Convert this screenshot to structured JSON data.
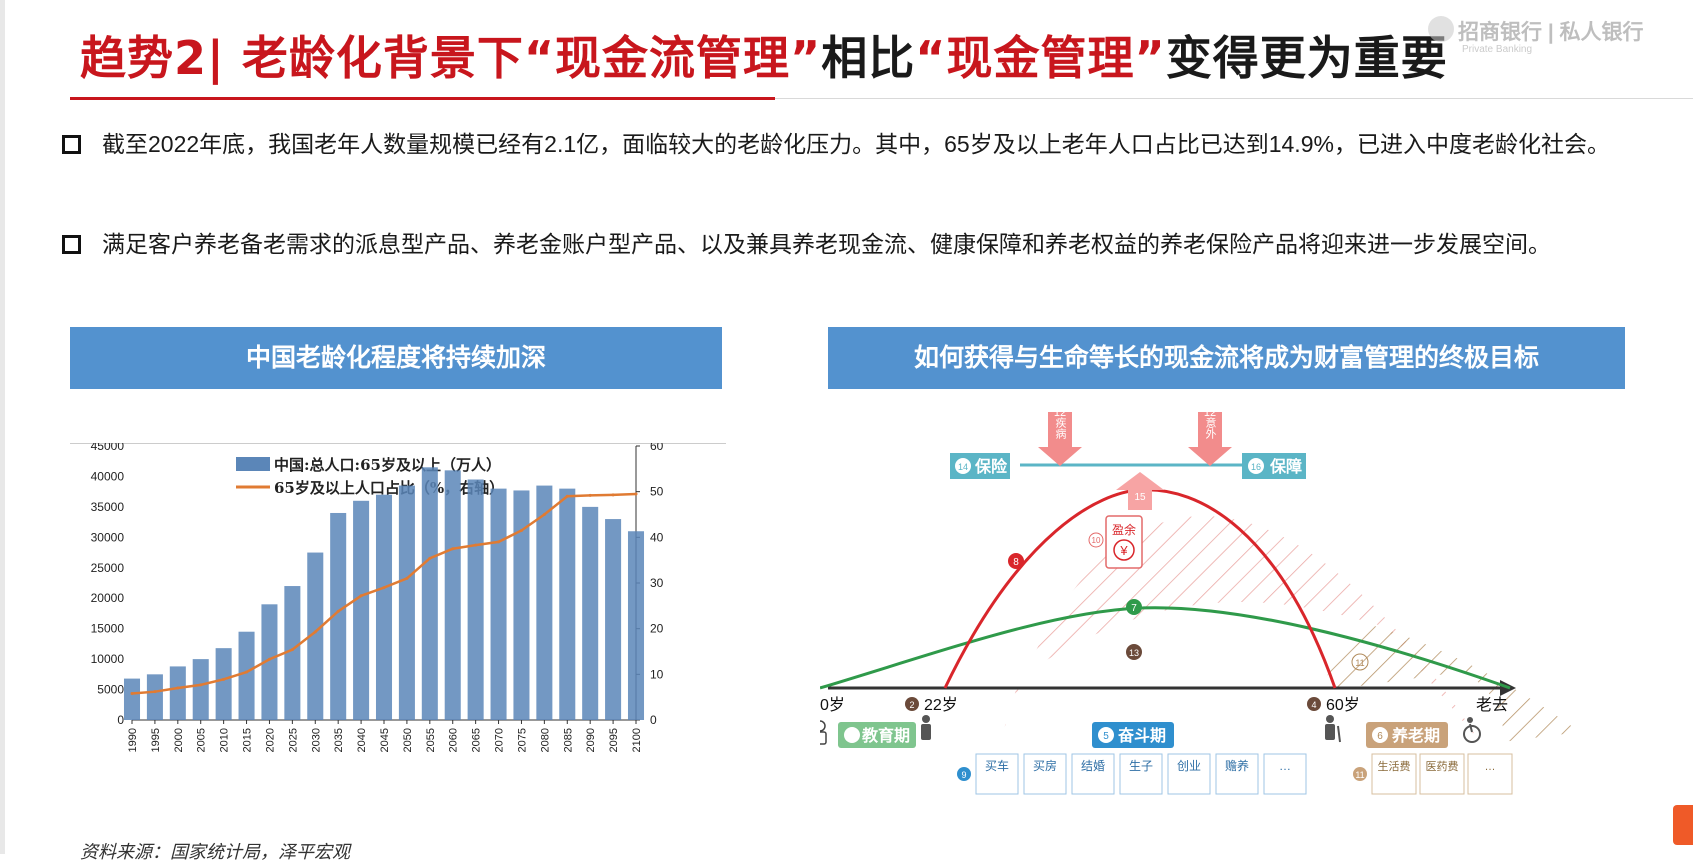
{
  "header": {
    "title_part1": "趋势2| 老龄化背景下",
    "title_quote1": "“现金流管理”",
    "title_part2": "相比",
    "title_quote2": "“现金管理”",
    "title_part3": "变得更为重要",
    "logo_cn": "招商银行 | 私人银行",
    "logo_en": "Private Banking"
  },
  "bullets": [
    "截至2022年底，我国老年人数量规模已经有2.1亿，面临较大的老龄化压力。其中，65岁及以上老年人口占比已达到14.9%，已进入中度老龄化社会。",
    "满足客户养老备老需求的派息型产品、养老金账户型产品、以及兼具养老现金流、健康保障和养老权益的养老保险产品将迎来进一步发展空间。"
  ],
  "left_panel": {
    "header": "中国老龄化程度将持续加深",
    "source": "资料来源：国家统计局，泽平宏观"
  },
  "right_panel": {
    "header": "如何获得与生命等长的现金流将成为财富管理的终极目标",
    "nodes": {
      "n1": "1",
      "n2": "2",
      "n4": "4",
      "n5": "5",
      "n6": "6",
      "n7": "7",
      "n8": "8",
      "n9": "9",
      "n10": "10",
      "n11": "11",
      "n11b": "11",
      "n12a": "12",
      "n12b": "12",
      "n13": "13",
      "n14": "14",
      "n15": "15",
      "n16": "16"
    },
    "age_0": "0岁",
    "age_22": "22岁",
    "age_60": "60岁",
    "age_old": "老去",
    "phase_edu": "教育期",
    "phase_work": "奋斗期",
    "phase_retire": "养老期",
    "protect_left": "保险",
    "protect_right": "保障",
    "risk_disease": "疾病",
    "risk_accident": "意外",
    "surplus": "盈余",
    "yen": "¥",
    "expenses_work": [
      "买车",
      "买房",
      "结婚",
      "生子",
      "创业",
      "赡养",
      "…"
    ],
    "expenses_retire": [
      "生活费",
      "医药费",
      "…"
    ],
    "colors": {
      "red_curve": "#d9262b",
      "green_curve": "#2f9a4a",
      "protect": "#5bb5c6",
      "retire": "#b08a5a",
      "work": "#2f8fce"
    }
  },
  "chart_data": {
    "type": "bar+line",
    "legend": [
      "中国:总人口:65岁及以上（万人）",
      "65岁及以上人口占比（%，右轴）"
    ],
    "x_ticks": [
      "1990",
      "1995",
      "2000",
      "2005",
      "2010",
      "2015",
      "2020",
      "2025",
      "2030",
      "2035",
      "2040",
      "2045",
      "2050",
      "2055",
      "2060",
      "2065",
      "2070",
      "2075",
      "2080",
      "2085",
      "2090",
      "2095",
      "2100"
    ],
    "y_left_ticks": [
      "0",
      "5000",
      "10000",
      "15000",
      "20000",
      "25000",
      "30000",
      "35000",
      "40000",
      "45000"
    ],
    "y_right_ticks": [
      "0",
      "10",
      "20",
      "30",
      "40",
      "50",
      "60"
    ],
    "ylim_left": [
      0,
      45000
    ],
    "ylim_right": [
      0,
      60
    ],
    "xlim": [
      1990,
      2100
    ],
    "series": [
      {
        "name": "中国:总人口:65岁及以上（万人）",
        "type": "bar",
        "x": [
          1990,
          1995,
          2000,
          2005,
          2010,
          2015,
          2020,
          2025,
          2030,
          2035,
          2040,
          2045,
          2050,
          2055,
          2060,
          2065,
          2070,
          2075,
          2080,
          2085,
          2090,
          2095,
          2100
        ],
        "values": [
          6800,
          7500,
          8800,
          10000,
          11800,
          14500,
          19000,
          22000,
          27500,
          34000,
          36000,
          37000,
          38500,
          41500,
          41000,
          39500,
          38000,
          37700,
          38500,
          38000,
          35000,
          33000,
          31000
        ]
      },
      {
        "name": "65岁及以上人口占比（%，右轴）",
        "type": "line",
        "x": [
          1990,
          1995,
          2000,
          2005,
          2010,
          2015,
          2020,
          2025,
          2030,
          2035,
          2040,
          2045,
          2050,
          2055,
          2060,
          2065,
          2070,
          2075,
          2080,
          2085,
          2090,
          2095,
          2100
        ],
        "values": [
          5.8,
          6.2,
          7.0,
          7.7,
          8.9,
          10.5,
          13.3,
          15.4,
          19.3,
          23.8,
          27.2,
          29.0,
          31.0,
          35.4,
          37.5,
          38.3,
          39.0,
          41.5,
          45.0,
          49.0,
          49.2,
          49.3,
          49.5
        ]
      }
    ]
  }
}
